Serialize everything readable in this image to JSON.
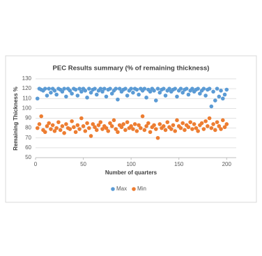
{
  "chart_data": {
    "type": "scatter",
    "title": "PEC Results summary (% of remaining thickness)",
    "x_label": "Number of quarters",
    "y_label": "Remaining Thickness %",
    "xlim": [
      0,
      210
    ],
    "xticks": [
      0,
      50,
      100,
      150,
      200
    ],
    "ylim": [
      50,
      130
    ],
    "yticks": [
      50,
      60,
      70,
      80,
      90,
      100,
      110,
      120,
      130
    ],
    "grid": true,
    "legend": "bottom",
    "x": [
      2,
      4,
      6,
      8,
      10,
      12,
      14,
      16,
      18,
      20,
      22,
      24,
      26,
      28,
      30,
      32,
      34,
      36,
      38,
      40,
      42,
      44,
      46,
      48,
      50,
      52,
      54,
      56,
      58,
      60,
      62,
      64,
      66,
      68,
      70,
      72,
      74,
      76,
      78,
      80,
      82,
      84,
      86,
      88,
      90,
      92,
      94,
      96,
      98,
      100,
      102,
      104,
      106,
      108,
      110,
      112,
      114,
      116,
      118,
      120,
      122,
      124,
      126,
      128,
      130,
      132,
      134,
      136,
      138,
      140,
      142,
      144,
      146,
      148,
      150,
      152,
      154,
      156,
      158,
      160,
      162,
      164,
      166,
      168,
      170,
      172,
      174,
      176,
      178,
      180,
      182,
      184,
      186,
      188,
      190,
      192,
      194,
      196,
      198,
      200
    ],
    "series": [
      {
        "name": "Max",
        "color": "#5b9bd5",
        "values": [
          110,
          120,
          119,
          118,
          120,
          113,
          120,
          116,
          120,
          118,
          114,
          120,
          119,
          117,
          120,
          112,
          120,
          118,
          115,
          120,
          119,
          113,
          120,
          117,
          120,
          118,
          111,
          120,
          116,
          119,
          120,
          114,
          118,
          120,
          117,
          120,
          112,
          119,
          120,
          115,
          118,
          120,
          109,
          120,
          117,
          119,
          120,
          113,
          118,
          120,
          116,
          120,
          119,
          114,
          120,
          118,
          120,
          111,
          119,
          117,
          120,
          118,
          108,
          120,
          116,
          119,
          120,
          113,
          118,
          120,
          117,
          119,
          120,
          112,
          118,
          120,
          116,
          119,
          120,
          114,
          118,
          120,
          117,
          119,
          120,
          115,
          118,
          120,
          113,
          119,
          120,
          102,
          117,
          108,
          120,
          112,
          118,
          110,
          114,
          119
        ]
      },
      {
        "name": "Min",
        "color": "#ed7d31",
        "values": [
          80,
          84,
          92,
          78,
          76,
          82,
          85,
          79,
          83,
          77,
          80,
          86,
          78,
          82,
          75,
          84,
          80,
          79,
          87,
          81,
          76,
          83,
          79,
          90,
          82,
          77,
          85,
          80,
          72,
          84,
          81,
          78,
          83,
          86,
          79,
          82,
          80,
          77,
          85,
          82,
          88,
          79,
          76,
          83,
          81,
          84,
          78,
          86,
          80,
          82,
          79,
          84,
          77,
          83,
          80,
          92,
          78,
          82,
          85,
          76,
          81,
          83,
          79,
          70,
          84,
          80,
          82,
          78,
          86,
          81,
          79,
          83,
          77,
          88,
          82,
          80,
          85,
          78,
          83,
          81,
          86,
          79,
          84,
          80,
          77,
          83,
          85,
          79,
          87,
          82,
          90,
          80,
          84,
          78,
          86,
          82,
          79,
          88,
          81,
          84
        ]
      }
    ]
  }
}
